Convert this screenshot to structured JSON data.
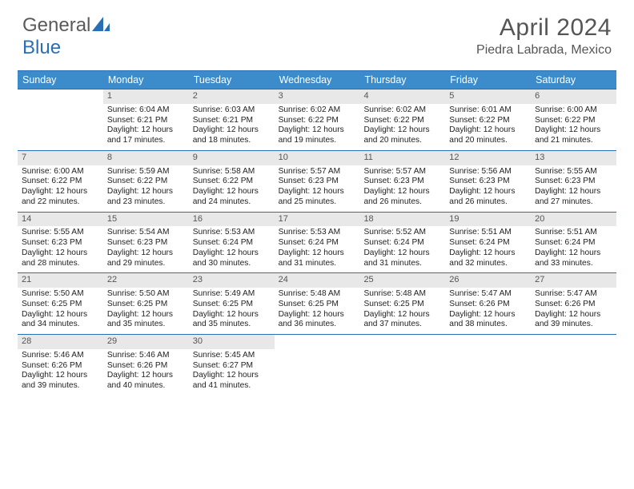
{
  "brand": {
    "first": "General",
    "second": "Blue"
  },
  "title": "April 2024",
  "location": "Piedra Labrada, Mexico",
  "colors": {
    "header_bg": "#3c8ccc",
    "border": "#2a6fb5",
    "daynum_bg": "#e8e8e8",
    "text": "#333333"
  },
  "day_names": [
    "Sunday",
    "Monday",
    "Tuesday",
    "Wednesday",
    "Thursday",
    "Friday",
    "Saturday"
  ],
  "weeks": [
    [
      {
        "n": "",
        "sunrise": "",
        "sunset": "",
        "day1": "",
        "day2": ""
      },
      {
        "n": "1",
        "sunrise": "Sunrise: 6:04 AM",
        "sunset": "Sunset: 6:21 PM",
        "day1": "Daylight: 12 hours",
        "day2": "and 17 minutes."
      },
      {
        "n": "2",
        "sunrise": "Sunrise: 6:03 AM",
        "sunset": "Sunset: 6:21 PM",
        "day1": "Daylight: 12 hours",
        "day2": "and 18 minutes."
      },
      {
        "n": "3",
        "sunrise": "Sunrise: 6:02 AM",
        "sunset": "Sunset: 6:22 PM",
        "day1": "Daylight: 12 hours",
        "day2": "and 19 minutes."
      },
      {
        "n": "4",
        "sunrise": "Sunrise: 6:02 AM",
        "sunset": "Sunset: 6:22 PM",
        "day1": "Daylight: 12 hours",
        "day2": "and 20 minutes."
      },
      {
        "n": "5",
        "sunrise": "Sunrise: 6:01 AM",
        "sunset": "Sunset: 6:22 PM",
        "day1": "Daylight: 12 hours",
        "day2": "and 20 minutes."
      },
      {
        "n": "6",
        "sunrise": "Sunrise: 6:00 AM",
        "sunset": "Sunset: 6:22 PM",
        "day1": "Daylight: 12 hours",
        "day2": "and 21 minutes."
      }
    ],
    [
      {
        "n": "7",
        "sunrise": "Sunrise: 6:00 AM",
        "sunset": "Sunset: 6:22 PM",
        "day1": "Daylight: 12 hours",
        "day2": "and 22 minutes."
      },
      {
        "n": "8",
        "sunrise": "Sunrise: 5:59 AM",
        "sunset": "Sunset: 6:22 PM",
        "day1": "Daylight: 12 hours",
        "day2": "and 23 minutes."
      },
      {
        "n": "9",
        "sunrise": "Sunrise: 5:58 AM",
        "sunset": "Sunset: 6:22 PM",
        "day1": "Daylight: 12 hours",
        "day2": "and 24 minutes."
      },
      {
        "n": "10",
        "sunrise": "Sunrise: 5:57 AM",
        "sunset": "Sunset: 6:23 PM",
        "day1": "Daylight: 12 hours",
        "day2": "and 25 minutes."
      },
      {
        "n": "11",
        "sunrise": "Sunrise: 5:57 AM",
        "sunset": "Sunset: 6:23 PM",
        "day1": "Daylight: 12 hours",
        "day2": "and 26 minutes."
      },
      {
        "n": "12",
        "sunrise": "Sunrise: 5:56 AM",
        "sunset": "Sunset: 6:23 PM",
        "day1": "Daylight: 12 hours",
        "day2": "and 26 minutes."
      },
      {
        "n": "13",
        "sunrise": "Sunrise: 5:55 AM",
        "sunset": "Sunset: 6:23 PM",
        "day1": "Daylight: 12 hours",
        "day2": "and 27 minutes."
      }
    ],
    [
      {
        "n": "14",
        "sunrise": "Sunrise: 5:55 AM",
        "sunset": "Sunset: 6:23 PM",
        "day1": "Daylight: 12 hours",
        "day2": "and 28 minutes."
      },
      {
        "n": "15",
        "sunrise": "Sunrise: 5:54 AM",
        "sunset": "Sunset: 6:23 PM",
        "day1": "Daylight: 12 hours",
        "day2": "and 29 minutes."
      },
      {
        "n": "16",
        "sunrise": "Sunrise: 5:53 AM",
        "sunset": "Sunset: 6:24 PM",
        "day1": "Daylight: 12 hours",
        "day2": "and 30 minutes."
      },
      {
        "n": "17",
        "sunrise": "Sunrise: 5:53 AM",
        "sunset": "Sunset: 6:24 PM",
        "day1": "Daylight: 12 hours",
        "day2": "and 31 minutes."
      },
      {
        "n": "18",
        "sunrise": "Sunrise: 5:52 AM",
        "sunset": "Sunset: 6:24 PM",
        "day1": "Daylight: 12 hours",
        "day2": "and 31 minutes."
      },
      {
        "n": "19",
        "sunrise": "Sunrise: 5:51 AM",
        "sunset": "Sunset: 6:24 PM",
        "day1": "Daylight: 12 hours",
        "day2": "and 32 minutes."
      },
      {
        "n": "20",
        "sunrise": "Sunrise: 5:51 AM",
        "sunset": "Sunset: 6:24 PM",
        "day1": "Daylight: 12 hours",
        "day2": "and 33 minutes."
      }
    ],
    [
      {
        "n": "21",
        "sunrise": "Sunrise: 5:50 AM",
        "sunset": "Sunset: 6:25 PM",
        "day1": "Daylight: 12 hours",
        "day2": "and 34 minutes."
      },
      {
        "n": "22",
        "sunrise": "Sunrise: 5:50 AM",
        "sunset": "Sunset: 6:25 PM",
        "day1": "Daylight: 12 hours",
        "day2": "and 35 minutes."
      },
      {
        "n": "23",
        "sunrise": "Sunrise: 5:49 AM",
        "sunset": "Sunset: 6:25 PM",
        "day1": "Daylight: 12 hours",
        "day2": "and 35 minutes."
      },
      {
        "n": "24",
        "sunrise": "Sunrise: 5:48 AM",
        "sunset": "Sunset: 6:25 PM",
        "day1": "Daylight: 12 hours",
        "day2": "and 36 minutes."
      },
      {
        "n": "25",
        "sunrise": "Sunrise: 5:48 AM",
        "sunset": "Sunset: 6:25 PM",
        "day1": "Daylight: 12 hours",
        "day2": "and 37 minutes."
      },
      {
        "n": "26",
        "sunrise": "Sunrise: 5:47 AM",
        "sunset": "Sunset: 6:26 PM",
        "day1": "Daylight: 12 hours",
        "day2": "and 38 minutes."
      },
      {
        "n": "27",
        "sunrise": "Sunrise: 5:47 AM",
        "sunset": "Sunset: 6:26 PM",
        "day1": "Daylight: 12 hours",
        "day2": "and 39 minutes."
      }
    ],
    [
      {
        "n": "28",
        "sunrise": "Sunrise: 5:46 AM",
        "sunset": "Sunset: 6:26 PM",
        "day1": "Daylight: 12 hours",
        "day2": "and 39 minutes."
      },
      {
        "n": "29",
        "sunrise": "Sunrise: 5:46 AM",
        "sunset": "Sunset: 6:26 PM",
        "day1": "Daylight: 12 hours",
        "day2": "and 40 minutes."
      },
      {
        "n": "30",
        "sunrise": "Sunrise: 5:45 AM",
        "sunset": "Sunset: 6:27 PM",
        "day1": "Daylight: 12 hours",
        "day2": "and 41 minutes."
      },
      {
        "n": "",
        "sunrise": "",
        "sunset": "",
        "day1": "",
        "day2": ""
      },
      {
        "n": "",
        "sunrise": "",
        "sunset": "",
        "day1": "",
        "day2": ""
      },
      {
        "n": "",
        "sunrise": "",
        "sunset": "",
        "day1": "",
        "day2": ""
      },
      {
        "n": "",
        "sunrise": "",
        "sunset": "",
        "day1": "",
        "day2": ""
      }
    ]
  ]
}
